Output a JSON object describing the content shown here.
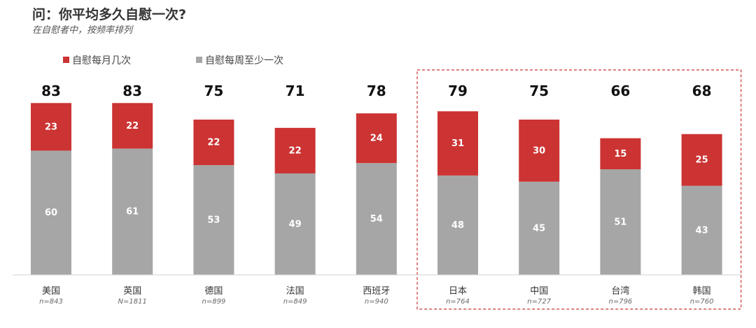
{
  "header": {
    "title": "问：你平均多久自慰一次?",
    "subtitle": "在自慰者中，按频率排列"
  },
  "colors": {
    "monthly": "#cc3333",
    "weekly": "#a6a6a6",
    "highlight_border": "#cc3333"
  },
  "chart_data": {
    "type": "bar",
    "stacked": true,
    "categories": [
      "美国",
      "英国",
      "德国",
      "法国",
      "西班牙",
      "日本",
      "中国",
      "台湾",
      "韩国"
    ],
    "sample_sizes": [
      "n=843",
      "N=1811",
      "n=899",
      "n=849",
      "n=940",
      "n=764",
      "n=727",
      "n=796",
      "n=760"
    ],
    "totals": [
      83,
      83,
      75,
      71,
      78,
      79,
      75,
      66,
      68
    ],
    "series": [
      {
        "name": "自慰每周至少一次",
        "values": [
          60,
          61,
          53,
          49,
          54,
          48,
          45,
          51,
          43
        ]
      },
      {
        "name": "自慰每月几次",
        "values": [
          23,
          22,
          22,
          22,
          24,
          31,
          30,
          15,
          25
        ]
      }
    ],
    "legend": [
      "自慰每月几次",
      "自慰每周至少一次"
    ],
    "highlighted_categories": [
      "日本",
      "中国",
      "台湾",
      "韩国"
    ],
    "ylim": [
      0,
      100
    ],
    "grid": false,
    "legend_position": "top-left"
  }
}
